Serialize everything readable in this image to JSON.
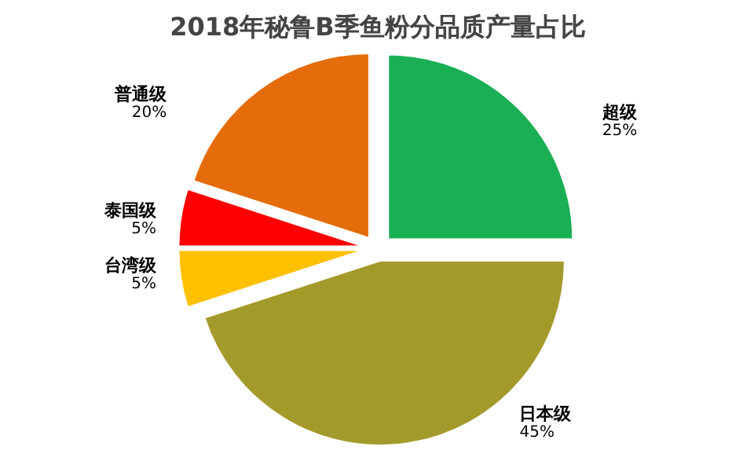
{
  "chart_data": {
    "type": "pie",
    "title": "2018年秘鲁B季鱼粉分品质产量占比",
    "categories": [
      "超级",
      "日本级",
      "台湾级",
      "泰国级",
      "普通级"
    ],
    "values": [
      25,
      45,
      5,
      5,
      20
    ],
    "value_labels": [
      "25%",
      "45%",
      "5%",
      "5%",
      "20%"
    ],
    "colors": [
      "#1aaf54",
      "#a39a2c",
      "#ffc000",
      "#ff0000",
      "#e46c0a"
    ]
  }
}
